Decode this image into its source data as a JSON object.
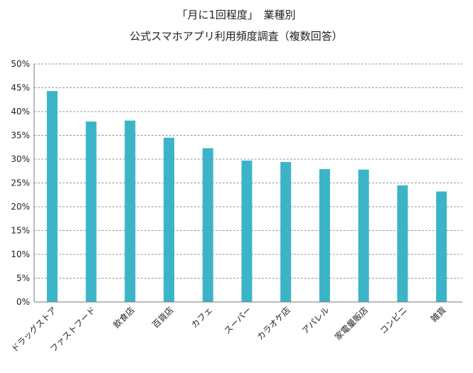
{
  "chart_data": {
    "type": "bar",
    "title": "「月に1回程度」　業種別",
    "subtitle": "公式スマホアプリ利用頻度調査（複数回答）",
    "categories": [
      "ドラッグストア",
      "ファストフード",
      "飲食店",
      "百貨店",
      "カフェ",
      "スーパー",
      "カラオケ店",
      "アパレル",
      "家電量販店",
      "コンビニ",
      "雑貨"
    ],
    "values": [
      0.443,
      0.379,
      0.381,
      0.345,
      0.323,
      0.297,
      0.294,
      0.279,
      0.278,
      0.245,
      0.232
    ],
    "ylim": [
      0,
      0.5
    ],
    "yticks": [
      "0%",
      "5%",
      "10%",
      "15%",
      "20%",
      "25%",
      "30%",
      "35%",
      "40%",
      "45%",
      "50%"
    ],
    "xlabel": "",
    "ylabel": "",
    "grid": "horizontal dashed",
    "legend": "none",
    "bar_color": "#3cb4c8"
  }
}
